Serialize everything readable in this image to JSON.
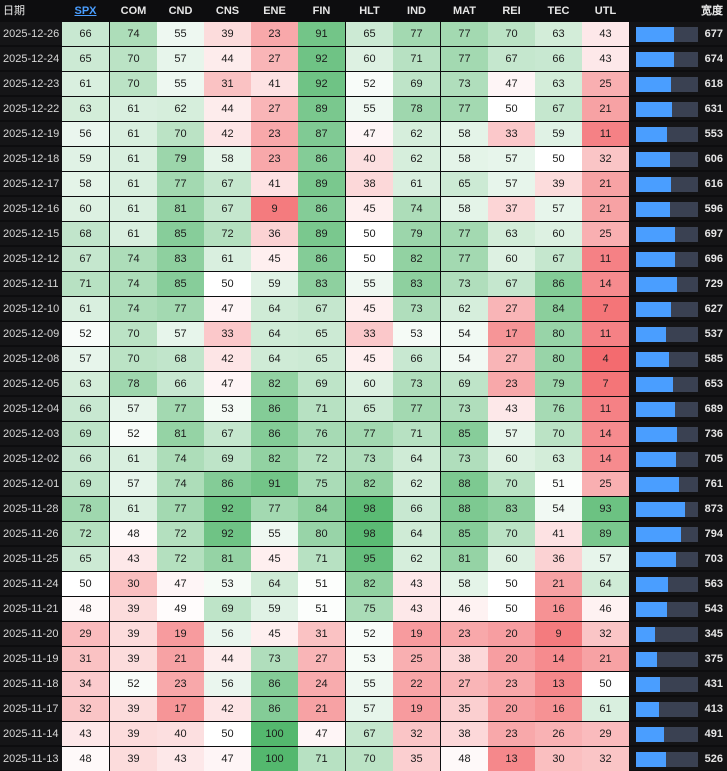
{
  "headers": {
    "date": "日期",
    "columns": [
      "SPX",
      "COM",
      "CND",
      "CNS",
      "ENE",
      "FIN",
      "HLT",
      "IND",
      "MAT",
      "REI",
      "TEC",
      "UTL"
    ],
    "active_column": "SPX",
    "score": "宽度"
  },
  "score_max": 1100,
  "rows": [
    {
      "date": "2025-12-26",
      "values": [
        66,
        74,
        55,
        39,
        23,
        91,
        65,
        77,
        77,
        70,
        63,
        43
      ],
      "score": "677"
    },
    {
      "date": "2025-12-24",
      "values": [
        65,
        70,
        57,
        44,
        27,
        92,
        60,
        71,
        77,
        67,
        66,
        43
      ],
      "score": "674"
    },
    {
      "date": "2025-12-23",
      "values": [
        61,
        70,
        55,
        31,
        41,
        92,
        52,
        69,
        73,
        47,
        63,
        25
      ],
      "score": "618"
    },
    {
      "date": "2025-12-22",
      "values": [
        63,
        61,
        62,
        44,
        27,
        89,
        55,
        78,
        77,
        50,
        67,
        21
      ],
      "score": "631"
    },
    {
      "date": "2025-12-19",
      "values": [
        56,
        61,
        70,
        42,
        23,
        87,
        47,
        62,
        58,
        33,
        59,
        11
      ],
      "score": "553"
    },
    {
      "date": "2025-12-18",
      "values": [
        59,
        61,
        79,
        58,
        23,
        86,
        40,
        62,
        58,
        57,
        50,
        32
      ],
      "score": "606"
    },
    {
      "date": "2025-12-17",
      "values": [
        58,
        61,
        77,
        67,
        41,
        89,
        38,
        61,
        65,
        57,
        39,
        21
      ],
      "score": "616"
    },
    {
      "date": "2025-12-16",
      "values": [
        60,
        61,
        81,
        67,
        9,
        86,
        45,
        74,
        58,
        37,
        57,
        21
      ],
      "score": "596"
    },
    {
      "date": "2025-12-15",
      "values": [
        68,
        61,
        85,
        72,
        36,
        89,
        50,
        79,
        77,
        63,
        60,
        25
      ],
      "score": "697"
    },
    {
      "date": "2025-12-12",
      "values": [
        67,
        74,
        83,
        61,
        45,
        86,
        50,
        82,
        77,
        60,
        67,
        11
      ],
      "score": "696"
    },
    {
      "date": "2025-12-11",
      "values": [
        71,
        74,
        85,
        50,
        59,
        83,
        55,
        83,
        73,
        67,
        86,
        14
      ],
      "score": "729"
    },
    {
      "date": "2025-12-10",
      "values": [
        61,
        74,
        77,
        47,
        64,
        67,
        45,
        73,
        62,
        27,
        84,
        7
      ],
      "score": "627"
    },
    {
      "date": "2025-12-09",
      "values": [
        52,
        70,
        57,
        33,
        64,
        65,
        33,
        53,
        54,
        17,
        80,
        11
      ],
      "score": "537"
    },
    {
      "date": "2025-12-08",
      "values": [
        57,
        70,
        68,
        42,
        64,
        65,
        45,
        66,
        54,
        27,
        80,
        4
      ],
      "score": "585"
    },
    {
      "date": "2025-12-05",
      "values": [
        63,
        78,
        66,
        47,
        82,
        69,
        60,
        73,
        69,
        23,
        79,
        7
      ],
      "score": "653"
    },
    {
      "date": "2025-12-04",
      "values": [
        66,
        57,
        77,
        53,
        86,
        71,
        65,
        77,
        73,
        43,
        76,
        11
      ],
      "score": "689"
    },
    {
      "date": "2025-12-03",
      "values": [
        69,
        52,
        81,
        67,
        86,
        76,
        77,
        71,
        85,
        57,
        70,
        14
      ],
      "score": "736"
    },
    {
      "date": "2025-12-02",
      "values": [
        66,
        61,
        74,
        69,
        82,
        72,
        73,
        64,
        73,
        60,
        63,
        14
      ],
      "score": "705"
    },
    {
      "date": "2025-12-01",
      "values": [
        69,
        57,
        74,
        86,
        91,
        75,
        82,
        62,
        88,
        70,
        51,
        25
      ],
      "score": "761"
    },
    {
      "date": "2025-11-28",
      "values": [
        78,
        61,
        77,
        92,
        77,
        84,
        98,
        66,
        88,
        83,
        54,
        93
      ],
      "score": "873"
    },
    {
      "date": "2025-11-26",
      "values": [
        72,
        48,
        72,
        92,
        55,
        80,
        98,
        64,
        85,
        70,
        41,
        89
      ],
      "score": "794"
    },
    {
      "date": "2025-11-25",
      "values": [
        65,
        43,
        72,
        81,
        45,
        71,
        95,
        62,
        81,
        60,
        36,
        57
      ],
      "score": "703"
    },
    {
      "date": "2025-11-24",
      "values": [
        50,
        30,
        47,
        53,
        64,
        51,
        82,
        43,
        58,
        50,
        21,
        64
      ],
      "score": "563"
    },
    {
      "date": "2025-11-21",
      "values": [
        48,
        39,
        49,
        69,
        59,
        51,
        75,
        43,
        46,
        50,
        16,
        46
      ],
      "score": "543"
    },
    {
      "date": "2025-11-20",
      "values": [
        29,
        39,
        19,
        56,
        45,
        31,
        52,
        19,
        23,
        20,
        9,
        32
      ],
      "score": "345"
    },
    {
      "date": "2025-11-19",
      "values": [
        31,
        39,
        21,
        44,
        73,
        27,
        53,
        25,
        38,
        20,
        14,
        21
      ],
      "score": "375"
    },
    {
      "date": "2025-11-18",
      "values": [
        34,
        52,
        23,
        56,
        86,
        24,
        55,
        22,
        27,
        23,
        13,
        50
      ],
      "score": "431"
    },
    {
      "date": "2025-11-17",
      "values": [
        32,
        39,
        17,
        42,
        86,
        21,
        57,
        19,
        35,
        20,
        16,
        61
      ],
      "score": "413"
    },
    {
      "date": "2025-11-14",
      "values": [
        43,
        39,
        40,
        50,
        100,
        47,
        67,
        32,
        38,
        23,
        26,
        29
      ],
      "score": "491"
    },
    {
      "date": "2025-11-13",
      "values": [
        48,
        39,
        43,
        47,
        100,
        71,
        70,
        35,
        48,
        13,
        30,
        32
      ],
      "score": "526"
    }
  ]
}
